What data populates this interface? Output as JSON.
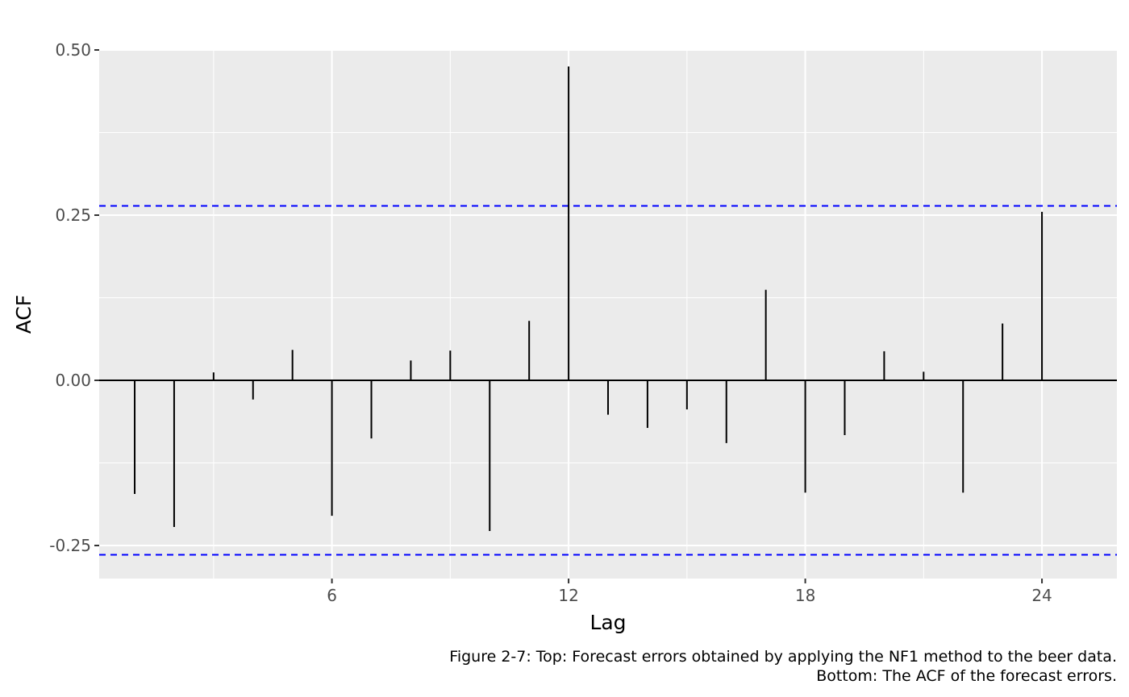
{
  "chart_data": {
    "type": "bar",
    "style": "acf-spikes",
    "xlabel": "Lag",
    "ylabel": "ACF",
    "xlim": [
      0.1,
      25.9
    ],
    "ylim": [
      -0.3,
      0.5
    ],
    "x_ticks": [
      6,
      12,
      18,
      24
    ],
    "y_ticks": [
      {
        "value": 0.5,
        "label": "0.50"
      },
      {
        "value": 0.25,
        "label": "0.25"
      },
      {
        "value": 0.0,
        "label": "0.00"
      },
      {
        "value": -0.25,
        "label": "-0.25"
      }
    ],
    "confidence_bounds": [
      0.264,
      -0.264
    ],
    "bound_color": "#0000ff",
    "grid": true,
    "lags": [
      1,
      2,
      3,
      4,
      5,
      6,
      7,
      8,
      9,
      10,
      11,
      12,
      13,
      14,
      15,
      16,
      17,
      18,
      19,
      20,
      21,
      22,
      23,
      24
    ],
    "values": [
      -0.172,
      -0.222,
      0.012,
      -0.029,
      0.046,
      -0.205,
      -0.088,
      0.03,
      0.045,
      -0.228,
      0.09,
      0.475,
      -0.052,
      -0.072,
      -0.044,
      -0.095,
      0.137,
      -0.17,
      -0.083,
      0.044,
      0.013,
      -0.17,
      0.086,
      0.255
    ]
  },
  "caption": {
    "line1": "Figure 2-7: Top: Forecast errors obtained by applying the NF1 method to the beer data.",
    "line2": "Bottom: The ACF of the forecast errors."
  }
}
